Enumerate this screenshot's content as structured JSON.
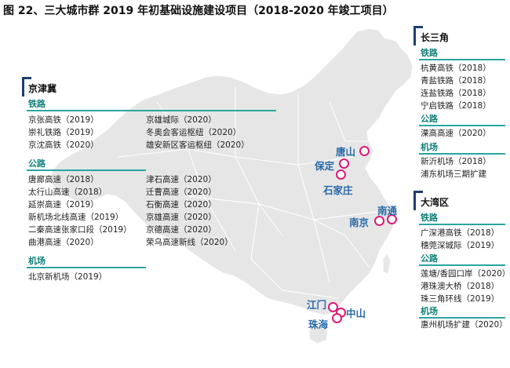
{
  "title": "图 22、三大城市群 2019 年初基础设施建设项目（2018-2020 年竣工项目）",
  "jjj": {
    "name": "京津冀",
    "rail_label": "铁路",
    "rail_left": [
      "京张高铁（2019）",
      "崇礼铁路（2019）",
      "京沈高铁（2020）"
    ],
    "rail_right": [
      "京雄城际（2020）",
      "冬奥会客运枢纽（2020）",
      "雄安新区客运枢纽（2020）"
    ],
    "road_label": "公路",
    "road_left": [
      "唐廊高速（2018）",
      "太行山高速（2018）",
      "延崇高速（2019）",
      "新机场北线高速（2019）",
      "二秦高速张家口段（2019）",
      "曲港高速（2020）"
    ],
    "road_right": [
      "津石高速（2020）",
      "迁曹高速（2020）",
      "石衡高速（2020）",
      "京雄高速（2020）",
      "京德高速（2020）",
      "荣乌高速新线（2020）"
    ],
    "airport_label": "机场",
    "airport": [
      "北京新机场（2019）"
    ]
  },
  "csj": {
    "name": "长三角",
    "rail_label": "铁路",
    "rail": [
      "杭黄高铁（2018）",
      "青盐铁路（2018）",
      "连盐铁路（2018）",
      "宁启铁路（2018）"
    ],
    "road_label": "公路",
    "road": [
      "溧高高速（2020）"
    ],
    "airport_label": "机场",
    "airport": [
      "新沂机场（2018）",
      "浦东机场三期扩建"
    ]
  },
  "dwq": {
    "name": "大湾区",
    "rail_label": "铁路",
    "rail": [
      "广深港高铁（2018）",
      "穗莞深城际（2019）"
    ],
    "road_label": "公路",
    "road": [
      "莲塘/香园口岸（2020）",
      "港珠澳大桥（2018）",
      "珠三角环线（2019）"
    ],
    "airport_label": "机场",
    "airport": [
      "惠州机场扩建（2020）"
    ]
  },
  "cities": {
    "tangshan": "唐山",
    "baoding": "保定",
    "shijiazhuang": "石家庄",
    "nantong": "南通",
    "nanjing": "南京",
    "jiangmen": "江门",
    "zhongshan": "中山",
    "zhuhai": "珠海"
  },
  "colors": {
    "map_fill": "#e6e6e6",
    "map_border": "#ffffff",
    "section_text": "#11807a",
    "section_line": "#2aa5a0",
    "bracket": "#1d3e6e",
    "city_marker": "#d81b7a",
    "city_label": "#2a6aa8"
  }
}
